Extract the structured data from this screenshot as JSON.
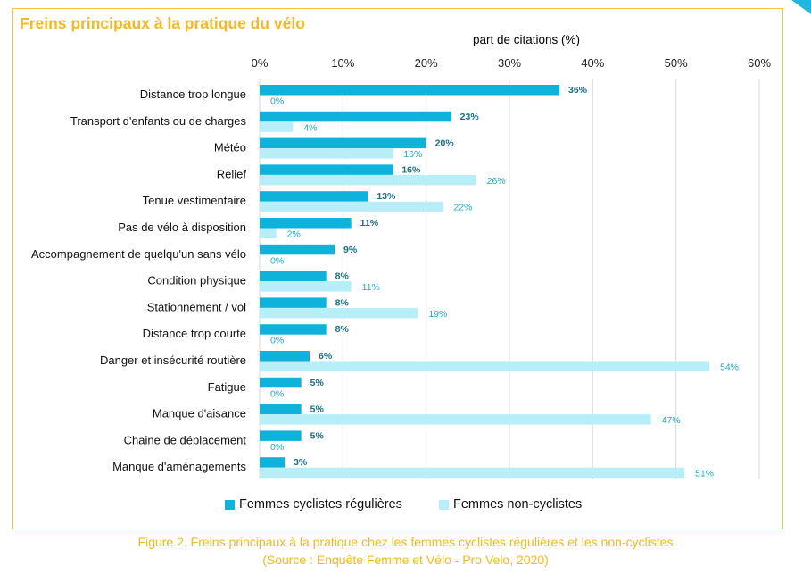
{
  "title": "Freins principaux à la pratique du vélo",
  "caption": {
    "line1": "Figure 2. Freins principaux à la pratique chez les femmes cyclistes régulières et les non-cyclistes",
    "line2": "(Source : Enquête Femme et Vélo - Pro Velo, 2020)"
  },
  "colors": {
    "series1": "#0FB2DA",
    "series2": "#B8EEF8",
    "label1": "#1A6E85",
    "label2": "#1FA8CC",
    "frame": "#F5C242",
    "title": "#F5B820"
  },
  "chart_data": {
    "type": "bar",
    "orientation": "horizontal",
    "title": "Freins principaux à la pratique du vélo",
    "xlabel": "part de citations (%)",
    "ylabel": "",
    "xlim": [
      0,
      60
    ],
    "xticks": [
      "0%",
      "10%",
      "20%",
      "30%",
      "40%",
      "50%",
      "60%"
    ],
    "grid": true,
    "legend_position": "bottom",
    "categories": [
      "Distance trop longue",
      "Transport d'enfants ou de charges",
      "Météo",
      "Relief",
      "Tenue vestimentaire",
      "Pas de vélo à disposition",
      "Accompagnement de quelqu'un sans vélo",
      "Condition physique",
      "Stationnement / vol",
      "Distance trop courte",
      "Danger et insécurité routière",
      "Fatigue",
      "Manque d'aisance",
      "Chaine de déplacement",
      "Manque d'aménagements"
    ],
    "series": [
      {
        "name": "Femmes cyclistes régulières",
        "values": [
          36,
          23,
          20,
          16,
          13,
          11,
          9,
          8,
          8,
          8,
          6,
          5,
          5,
          5,
          3
        ],
        "labels": [
          "36%",
          "23%",
          "20%",
          "16%",
          "13%",
          "11%",
          "9%",
          "8%",
          "8%",
          "8%",
          "6%",
          "5%",
          "5%",
          "5%",
          "3%"
        ]
      },
      {
        "name": "Femmes non-cyclistes",
        "values": [
          0,
          4,
          16,
          26,
          22,
          2,
          0,
          11,
          19,
          0,
          54,
          0,
          47,
          0,
          51
        ],
        "labels": [
          "0%",
          "4%",
          "16%",
          "26%",
          "22%",
          "2%",
          "0%",
          "11%",
          "19%",
          "0%",
          "54%",
          "0%",
          "47%",
          "0%",
          "51%"
        ]
      }
    ]
  }
}
